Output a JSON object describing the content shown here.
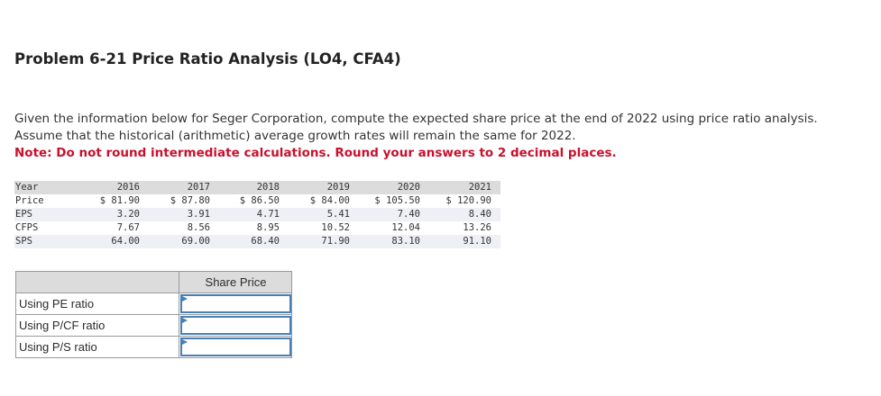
{
  "header": {
    "title": "Problem 6-21 Price Ratio Analysis (LO4, CFA4)"
  },
  "instructions": {
    "lines": [
      "Given the information below for Seger Corporation, compute the expected share price at the end of 2022 using price ratio analysis.",
      "Assume that the historical (arithmetic) average growth rates will remain the same for 2022."
    ],
    "note": "Note: Do not round intermediate calculations. Round your answers to 2 decimal places."
  },
  "data_table": {
    "header": [
      "Year",
      "2016",
      "2017",
      "2018",
      "2019",
      "2020",
      "2021"
    ],
    "rows": [
      [
        "Price",
        "$ 81.90",
        "$ 87.80",
        "$ 86.50",
        "$ 84.00",
        "$ 105.50",
        "$ 120.90"
      ],
      [
        "EPS",
        "3.20",
        "3.91",
        "4.71",
        "5.41",
        "7.40",
        "8.40"
      ],
      [
        "CFPS",
        "7.67",
        "8.56",
        "8.95",
        "10.52",
        "12.04",
        "13.26"
      ],
      [
        "SPS",
        "64.00",
        "69.00",
        "68.40",
        "71.90",
        "83.10",
        "91.10"
      ]
    ]
  },
  "answer_table": {
    "column_header": "Share Price",
    "rows": [
      "Using PE ratio",
      "Using P/CF ratio",
      "Using P/S ratio"
    ]
  }
}
